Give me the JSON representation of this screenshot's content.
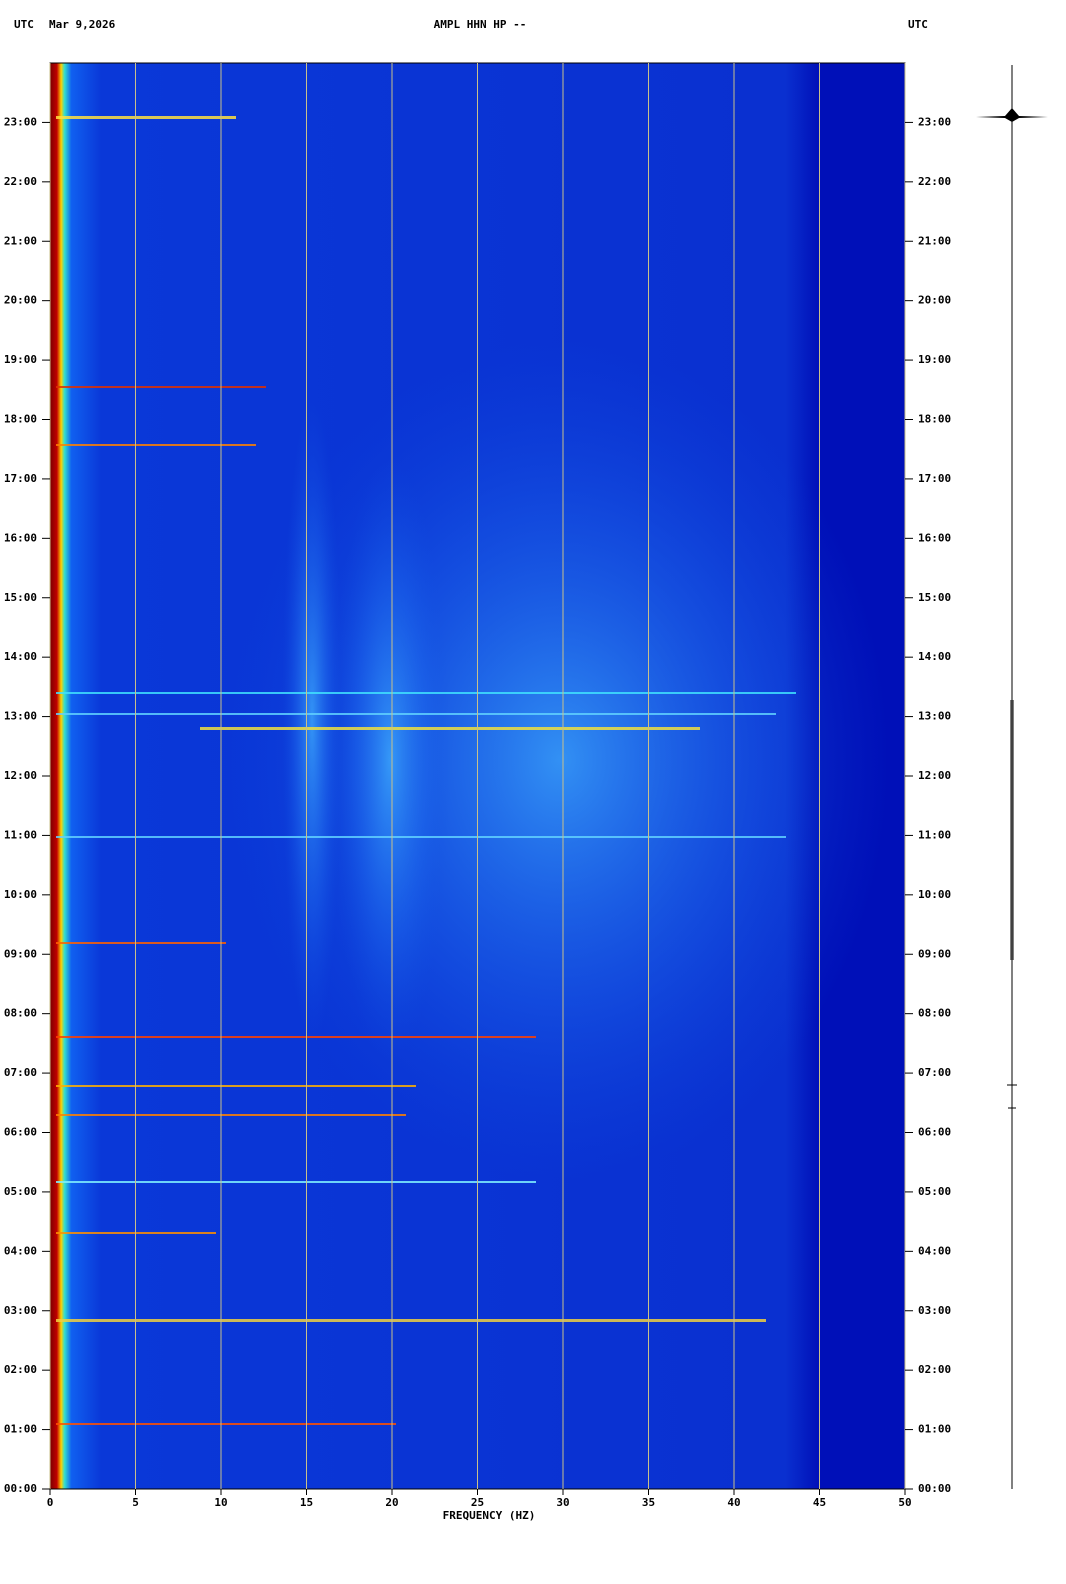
{
  "chart_data": {
    "type": "spectrogram",
    "left_label": "UTC",
    "date": "Mar 9,2026",
    "title": "AMPL HHN HP --",
    "right_label": "UTC",
    "xlabel": "FREQUENCY (HZ)",
    "xlim": [
      0,
      50
    ],
    "xticks": [
      0,
      5,
      10,
      15,
      20,
      25,
      30,
      35,
      40,
      45,
      50
    ],
    "ylim": [
      0,
      24
    ],
    "yticks": [
      {
        "value": 0,
        "label": "00:00"
      },
      {
        "value": 1,
        "label": "01:00"
      },
      {
        "value": 2,
        "label": "02:00"
      },
      {
        "value": 3,
        "label": "03:00"
      },
      {
        "value": 4,
        "label": "04:00"
      },
      {
        "value": 5,
        "label": "05:00"
      },
      {
        "value": 6,
        "label": "06:00"
      },
      {
        "value": 7,
        "label": "07:00"
      },
      {
        "value": 8,
        "label": "08:00"
      },
      {
        "value": 9,
        "label": "09:00"
      },
      {
        "value": 10,
        "label": "10:00"
      },
      {
        "value": 11,
        "label": "11:00"
      },
      {
        "value": 12,
        "label": "12:00"
      },
      {
        "value": 13,
        "label": "13:00"
      },
      {
        "value": 14,
        "label": "14:00"
      },
      {
        "value": 15,
        "label": "15:00"
      },
      {
        "value": 16,
        "label": "16:00"
      },
      {
        "value": 17,
        "label": "17:00"
      },
      {
        "value": 18,
        "label": "18:00"
      },
      {
        "value": 19,
        "label": "19:00"
      },
      {
        "value": 20,
        "label": "20:00"
      },
      {
        "value": 21,
        "label": "21:00"
      },
      {
        "value": 22,
        "label": "22:00"
      },
      {
        "value": 23,
        "label": "23:00"
      }
    ],
    "grid": true
  }
}
